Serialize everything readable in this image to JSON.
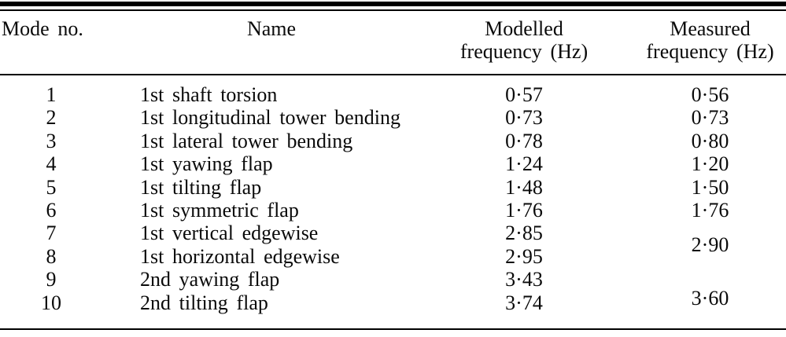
{
  "page": {
    "background_color": "#ffffff",
    "text_color": "#0a0a0a",
    "rule_color": "#000000"
  },
  "table": {
    "headers": {
      "mode_no": "Mode no.",
      "name": "Name",
      "modelled_line1": "Modelled",
      "modelled_line2": "frequency (Hz)",
      "measured_line1": "Measured",
      "measured_line2": "frequency (Hz)"
    },
    "rows": [
      {
        "mode": "1",
        "name": "1st shaft torsion",
        "modelled": "0·57",
        "measured": "0·56"
      },
      {
        "mode": "2",
        "name": "1st longitudinal tower bending",
        "modelled": "0·73",
        "measured": "0·73"
      },
      {
        "mode": "3",
        "name": "1st lateral tower bending",
        "modelled": "0·78",
        "measured": "0·80"
      },
      {
        "mode": "4",
        "name": "1st yawing flap",
        "modelled": "1·24",
        "measured": "1·20"
      },
      {
        "mode": "5",
        "name": "1st tilting flap",
        "modelled": "1·48",
        "measured": "1·50"
      },
      {
        "mode": "6",
        "name": "1st symmetric flap",
        "modelled": "1·76",
        "measured": "1·76"
      },
      {
        "mode": "7",
        "name": "1st vertical edgewise",
        "modelled": "2·85",
        "measured": "2·90",
        "measured_shared_with_mode": "8"
      },
      {
        "mode": "8",
        "name": "1st horizontal edgewise",
        "modelled": "2·95"
      },
      {
        "mode": "9",
        "name": "2nd yawing flap",
        "modelled": "3·43",
        "measured": "3·60",
        "measured_shared_with_mode": "10"
      },
      {
        "mode": "10",
        "name": "2nd tilting flap",
        "modelled": "3·74"
      }
    ]
  }
}
